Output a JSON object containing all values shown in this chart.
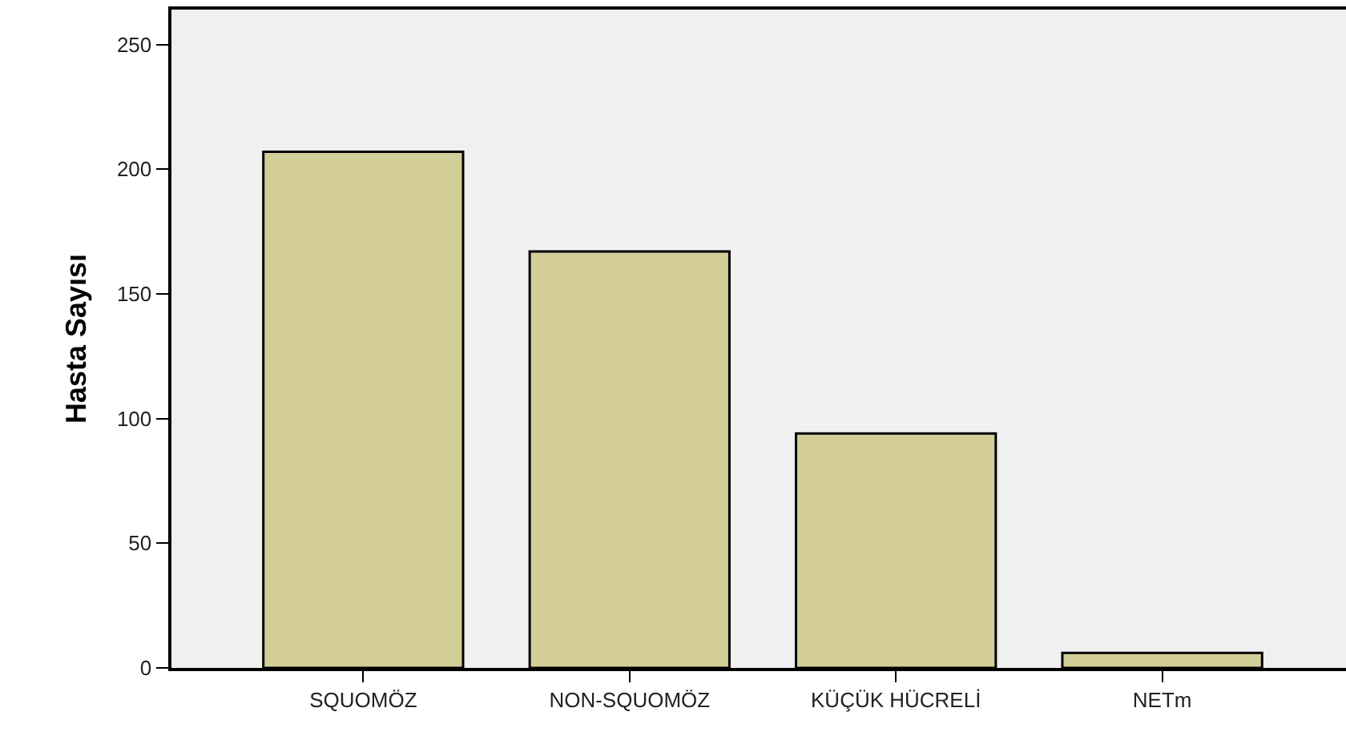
{
  "chart_data": {
    "type": "bar",
    "ylabel": "Hasta Sayısı",
    "categories": [
      "SQUOMÖZ",
      "NON-SQUOMÖZ",
      "KÜÇÜK HÜCRELİ",
      "NETm"
    ],
    "values": [
      207,
      167,
      94,
      6
    ],
    "color": "#d3ce97",
    "ylim": [
      0,
      264
    ],
    "yticks": [
      0,
      50,
      100,
      150,
      200,
      250
    ]
  }
}
